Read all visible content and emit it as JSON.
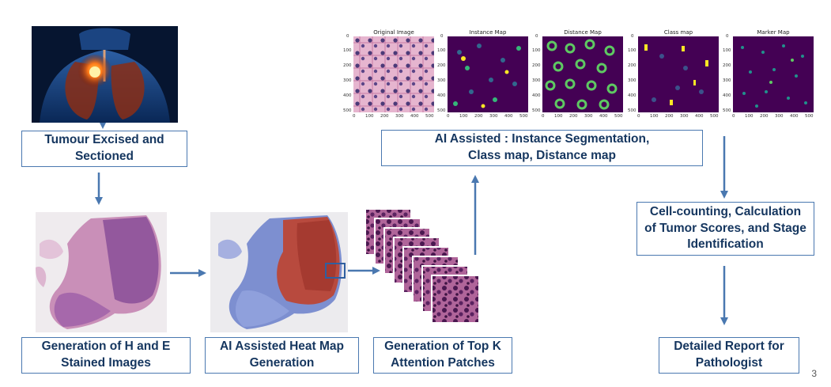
{
  "boxes": {
    "tumour": [
      "Tumour Excised and",
      "Sectioned"
    ],
    "ai_instance": [
      "AI Assisted : Instance Segmentation,",
      "Class map, Distance map"
    ],
    "cell_counting": [
      "Cell-counting, Calculation",
      "of Tumor Scores, and Stage",
      "Identification"
    ],
    "he_images": [
      "Generation of H and E",
      "Stained Images"
    ],
    "heatmap": [
      "AI Assisted Heat Map",
      "Generation"
    ],
    "patches": [
      "Generation of Top K",
      "Attention Patches"
    ],
    "report": [
      "Detailed Report for",
      "Pathologist"
    ]
  },
  "panels": [
    "Original Image",
    "Instance Map",
    "Distance Map",
    "Class map",
    "Marker Map"
  ],
  "y_ticks": [
    "0",
    "100",
    "200",
    "300",
    "400",
    "500"
  ],
  "x_ticks": [
    "0",
    "100",
    "200",
    "300",
    "400",
    "500"
  ],
  "page_number": "3",
  "colors": {
    "box_border": "#4a78b0",
    "box_text": "#15365f",
    "arrow": "#4a78b0",
    "he_pink": "#c98fb8",
    "he_purple": "#8a4f98",
    "heat_red": "#b84a3e",
    "heat_blue": "#7d8fd0",
    "viridis_bg": "#440154"
  }
}
